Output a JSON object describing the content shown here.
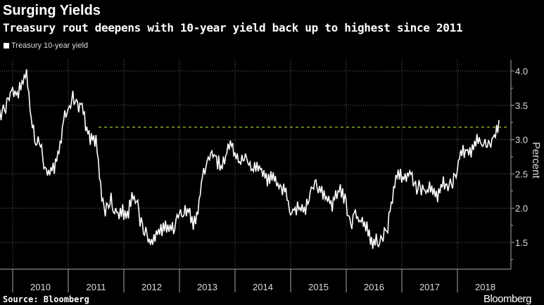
{
  "header": {
    "title": "Surging Yields",
    "subtitle": "Treasury rout deepens with 10-year yield back up to highest since 2011"
  },
  "footer": {
    "source": "Source: Bloomberg",
    "brand": "Bloomberg"
  },
  "chart_data": {
    "type": "line",
    "title": "Surging Yields",
    "subtitle": "Treasury rout deepens with 10-year yield back up to highest since 2011",
    "ylabel": "Percent",
    "xlabel": "",
    "ylim": [
      1.1,
      4.15
    ],
    "yticks": [
      "1.5",
      "2.0",
      "2.5",
      "3.0",
      "3.5",
      "4.0"
    ],
    "xticks": [
      "2010",
      "2011",
      "2012",
      "2013",
      "2014",
      "2015",
      "2016",
      "2017",
      "2018"
    ],
    "grid": true,
    "legend": {
      "placement": "top-left",
      "entries": [
        "Treasury 10-year yield"
      ]
    },
    "reference_line": {
      "value": 3.18,
      "style": "dashed",
      "color": "#9acd32"
    },
    "colors": {
      "line": "#ffffff",
      "reference": "#9acd32"
    },
    "series": [
      {
        "name": "Treasury 10-year yield",
        "start": 2009.75,
        "step_years": 0.0833,
        "values": [
          3.4,
          3.4,
          3.6,
          3.7,
          3.65,
          3.8,
          3.95,
          3.3,
          3.0,
          2.95,
          2.6,
          2.5,
          2.6,
          2.8,
          3.3,
          3.4,
          3.6,
          3.5,
          3.45,
          3.15,
          3.0,
          3.0,
          2.3,
          1.95,
          2.15,
          2.0,
          1.9,
          1.95,
          1.95,
          2.2,
          2.0,
          1.7,
          1.6,
          1.5,
          1.65,
          1.7,
          1.7,
          1.65,
          1.75,
          1.95,
          1.95,
          1.95,
          1.75,
          2.0,
          2.5,
          2.6,
          2.8,
          2.7,
          2.6,
          2.75,
          2.95,
          2.8,
          2.7,
          2.75,
          2.7,
          2.55,
          2.6,
          2.55,
          2.4,
          2.5,
          2.3,
          2.3,
          2.2,
          1.9,
          2.0,
          2.0,
          1.95,
          2.2,
          2.35,
          2.3,
          2.2,
          2.15,
          2.05,
          2.25,
          2.25,
          2.05,
          1.75,
          1.9,
          1.8,
          1.8,
          1.6,
          1.5,
          1.55,
          1.6,
          1.75,
          2.15,
          2.5,
          2.45,
          2.45,
          2.5,
          2.3,
          2.3,
          2.2,
          2.3,
          2.2,
          2.2,
          2.35,
          2.35,
          2.4,
          2.6,
          2.85,
          2.85,
          2.85,
          3.0,
          2.9,
          2.9,
          2.9,
          3.0,
          3.2
        ]
      }
    ]
  }
}
